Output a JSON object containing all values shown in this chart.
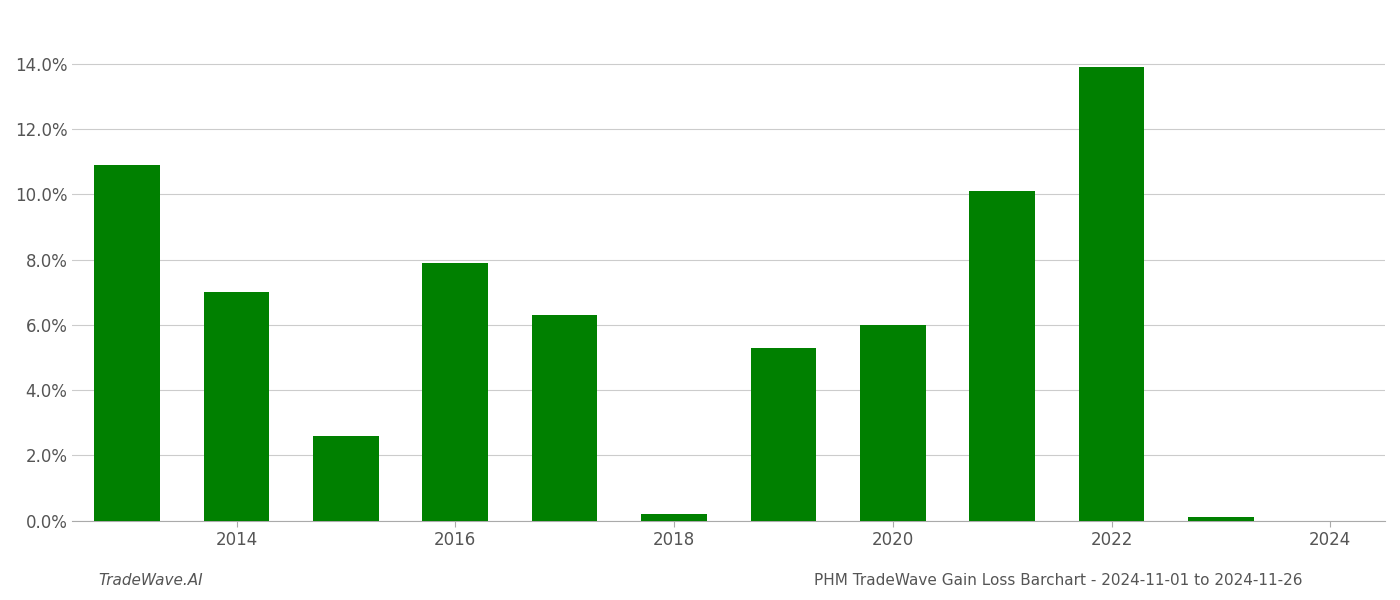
{
  "years": [
    2013,
    2014,
    2015,
    2016,
    2017,
    2018,
    2019,
    2020,
    2021,
    2022,
    2023
  ],
  "values": [
    0.109,
    0.07,
    0.026,
    0.079,
    0.063,
    0.002,
    0.053,
    0.06,
    0.101,
    0.139,
    0.001
  ],
  "bar_color": "#008000",
  "background_color": "#ffffff",
  "grid_color": "#cccccc",
  "ylim": [
    0,
    0.155
  ],
  "yticks": [
    0.0,
    0.02,
    0.04,
    0.06,
    0.08,
    0.1,
    0.12,
    0.14
  ],
  "xticks": [
    2014,
    2016,
    2018,
    2020,
    2022,
    2024
  ],
  "xlim": [
    2012.5,
    2024.5
  ],
  "footer_left": "TradeWave.AI",
  "footer_right": "PHM TradeWave Gain Loss Barchart - 2024-11-01 to 2024-11-26",
  "footer_fontsize": 11,
  "tick_fontsize": 12
}
